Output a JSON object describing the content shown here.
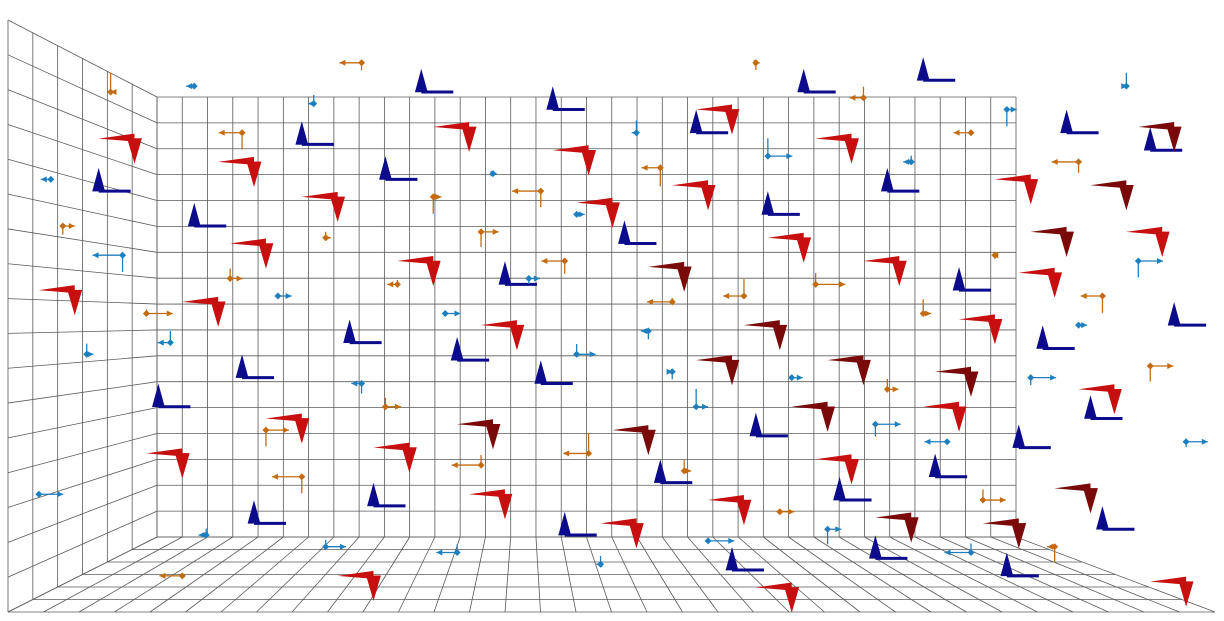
{
  "chart_data": {
    "type": "scatter",
    "title": "",
    "description_text": "",
    "axes": {
      "visible_ticks": false,
      "grid": true,
      "projection": "3d-box-inside-view"
    },
    "colors": {
      "blue_dark": "#0b0b8c",
      "blue_light": "#1e7fbf",
      "red": "#c80f0f",
      "dark_red": "#7a0a0a",
      "orange": "#c46b10",
      "grid": "#5a5a5a"
    },
    "series": [
      {
        "color_key": "blue_dark",
        "glyph": "cone-up",
        "points": [
          [
            0.24,
            0.21
          ],
          [
            0.31,
            0.27
          ],
          [
            0.41,
            0.45
          ],
          [
            0.51,
            0.38
          ],
          [
            0.63,
            0.33
          ],
          [
            0.73,
            0.29
          ],
          [
            0.79,
            0.46
          ],
          [
            0.86,
            0.56
          ],
          [
            0.12,
            0.66
          ],
          [
            0.19,
            0.61
          ],
          [
            0.28,
            0.55
          ],
          [
            0.37,
            0.58
          ],
          [
            0.44,
            0.62
          ],
          [
            0.54,
            0.79
          ],
          [
            0.62,
            0.71
          ],
          [
            0.69,
            0.82
          ],
          [
            0.77,
            0.78
          ],
          [
            0.84,
            0.73
          ],
          [
            0.9,
            0.68
          ],
          [
            0.95,
            0.22
          ],
          [
            0.07,
            0.29
          ],
          [
            0.15,
            0.35
          ],
          [
            0.34,
            0.12
          ],
          [
            0.45,
            0.15
          ],
          [
            0.57,
            0.19
          ],
          [
            0.66,
            0.12
          ],
          [
            0.76,
            0.1
          ],
          [
            0.88,
            0.19
          ],
          [
            0.91,
            0.87
          ],
          [
            0.46,
            0.88
          ],
          [
            0.3,
            0.83
          ],
          [
            0.6,
            0.94
          ],
          [
            0.72,
            0.92
          ],
          [
            0.83,
            0.95
          ],
          [
            0.2,
            0.86
          ],
          [
            0.97,
            0.52
          ]
        ]
      },
      {
        "color_key": "red",
        "glyph": "cone-down",
        "points": [
          [
            0.1,
            0.2
          ],
          [
            0.2,
            0.24
          ],
          [
            0.27,
            0.3
          ],
          [
            0.35,
            0.41
          ],
          [
            0.42,
            0.52
          ],
          [
            0.5,
            0.31
          ],
          [
            0.58,
            0.28
          ],
          [
            0.66,
            0.37
          ],
          [
            0.74,
            0.41
          ],
          [
            0.82,
            0.51
          ],
          [
            0.92,
            0.63
          ],
          [
            0.14,
            0.74
          ],
          [
            0.24,
            0.68
          ],
          [
            0.33,
            0.73
          ],
          [
            0.41,
            0.81
          ],
          [
            0.52,
            0.86
          ],
          [
            0.61,
            0.82
          ],
          [
            0.7,
            0.75
          ],
          [
            0.79,
            0.66
          ],
          [
            0.87,
            0.43
          ],
          [
            0.96,
            0.36
          ],
          [
            0.05,
            0.46
          ],
          [
            0.17,
            0.48
          ],
          [
            0.38,
            0.18
          ],
          [
            0.48,
            0.22
          ],
          [
            0.6,
            0.15
          ],
          [
            0.7,
            0.2
          ],
          [
            0.85,
            0.27
          ],
          [
            0.3,
            0.95
          ],
          [
            0.65,
            0.97
          ],
          [
            0.98,
            0.96
          ],
          [
            0.21,
            0.38
          ]
        ]
      },
      {
        "color_key": "dark_red",
        "glyph": "cone-down",
        "points": [
          [
            0.56,
            0.42
          ],
          [
            0.64,
            0.52
          ],
          [
            0.71,
            0.58
          ],
          [
            0.8,
            0.6
          ],
          [
            0.88,
            0.36
          ],
          [
            0.93,
            0.28
          ],
          [
            0.97,
            0.18
          ],
          [
            0.75,
            0.85
          ],
          [
            0.84,
            0.86
          ],
          [
            0.53,
            0.7
          ],
          [
            0.4,
            0.69
          ],
          [
            0.68,
            0.66
          ],
          [
            0.9,
            0.8
          ],
          [
            0.6,
            0.58
          ]
        ]
      },
      {
        "color_key": "blue_light",
        "glyph": "diamond",
        "points": [
          [
            0.09,
            0.4
          ],
          [
            0.13,
            0.55
          ],
          [
            0.22,
            0.47
          ],
          [
            0.29,
            0.62
          ],
          [
            0.36,
            0.5
          ],
          [
            0.43,
            0.44
          ],
          [
            0.47,
            0.57
          ],
          [
            0.53,
            0.53
          ],
          [
            0.57,
            0.66
          ],
          [
            0.65,
            0.61
          ],
          [
            0.72,
            0.69
          ],
          [
            0.78,
            0.72
          ],
          [
            0.85,
            0.61
          ],
          [
            0.89,
            0.52
          ],
          [
            0.94,
            0.41
          ],
          [
            0.16,
            0.88
          ],
          [
            0.26,
            0.9
          ],
          [
            0.37,
            0.91
          ],
          [
            0.49,
            0.93
          ],
          [
            0.58,
            0.89
          ],
          [
            0.68,
            0.87
          ],
          [
            0.8,
            0.91
          ],
          [
            0.4,
            0.26
          ],
          [
            0.52,
            0.19
          ],
          [
            0.63,
            0.23
          ],
          [
            0.75,
            0.24
          ],
          [
            0.83,
            0.15
          ],
          [
            0.93,
            0.11
          ],
          [
            0.25,
            0.14
          ],
          [
            0.15,
            0.11
          ],
          [
            0.03,
            0.27
          ],
          [
            0.06,
            0.57
          ],
          [
            0.02,
            0.81
          ],
          [
            0.98,
            0.72
          ],
          [
            0.47,
            0.33
          ],
          [
            0.55,
            0.6
          ]
        ]
      },
      {
        "color_key": "orange",
        "glyph": "diamond",
        "points": [
          [
            0.11,
            0.5
          ],
          [
            0.18,
            0.44
          ],
          [
            0.26,
            0.37
          ],
          [
            0.32,
            0.45
          ],
          [
            0.39,
            0.36
          ],
          [
            0.46,
            0.41
          ],
          [
            0.55,
            0.48
          ],
          [
            0.61,
            0.47
          ],
          [
            0.67,
            0.45
          ],
          [
            0.76,
            0.5
          ],
          [
            0.82,
            0.4
          ],
          [
            0.91,
            0.47
          ],
          [
            0.95,
            0.59
          ],
          [
            0.21,
            0.7
          ],
          [
            0.31,
            0.66
          ],
          [
            0.39,
            0.76
          ],
          [
            0.48,
            0.74
          ],
          [
            0.56,
            0.77
          ],
          [
            0.64,
            0.84
          ],
          [
            0.73,
            0.63
          ],
          [
            0.81,
            0.82
          ],
          [
            0.87,
            0.9
          ],
          [
            0.14,
            0.95
          ],
          [
            0.24,
            0.78
          ],
          [
            0.35,
            0.3
          ],
          [
            0.44,
            0.29
          ],
          [
            0.54,
            0.25
          ],
          [
            0.62,
            0.07
          ],
          [
            0.71,
            0.13
          ],
          [
            0.8,
            0.19
          ],
          [
            0.89,
            0.24
          ],
          [
            0.04,
            0.35
          ],
          [
            0.08,
            0.12
          ],
          [
            0.19,
            0.19
          ],
          [
            0.29,
            0.07
          ]
        ]
      }
    ]
  }
}
